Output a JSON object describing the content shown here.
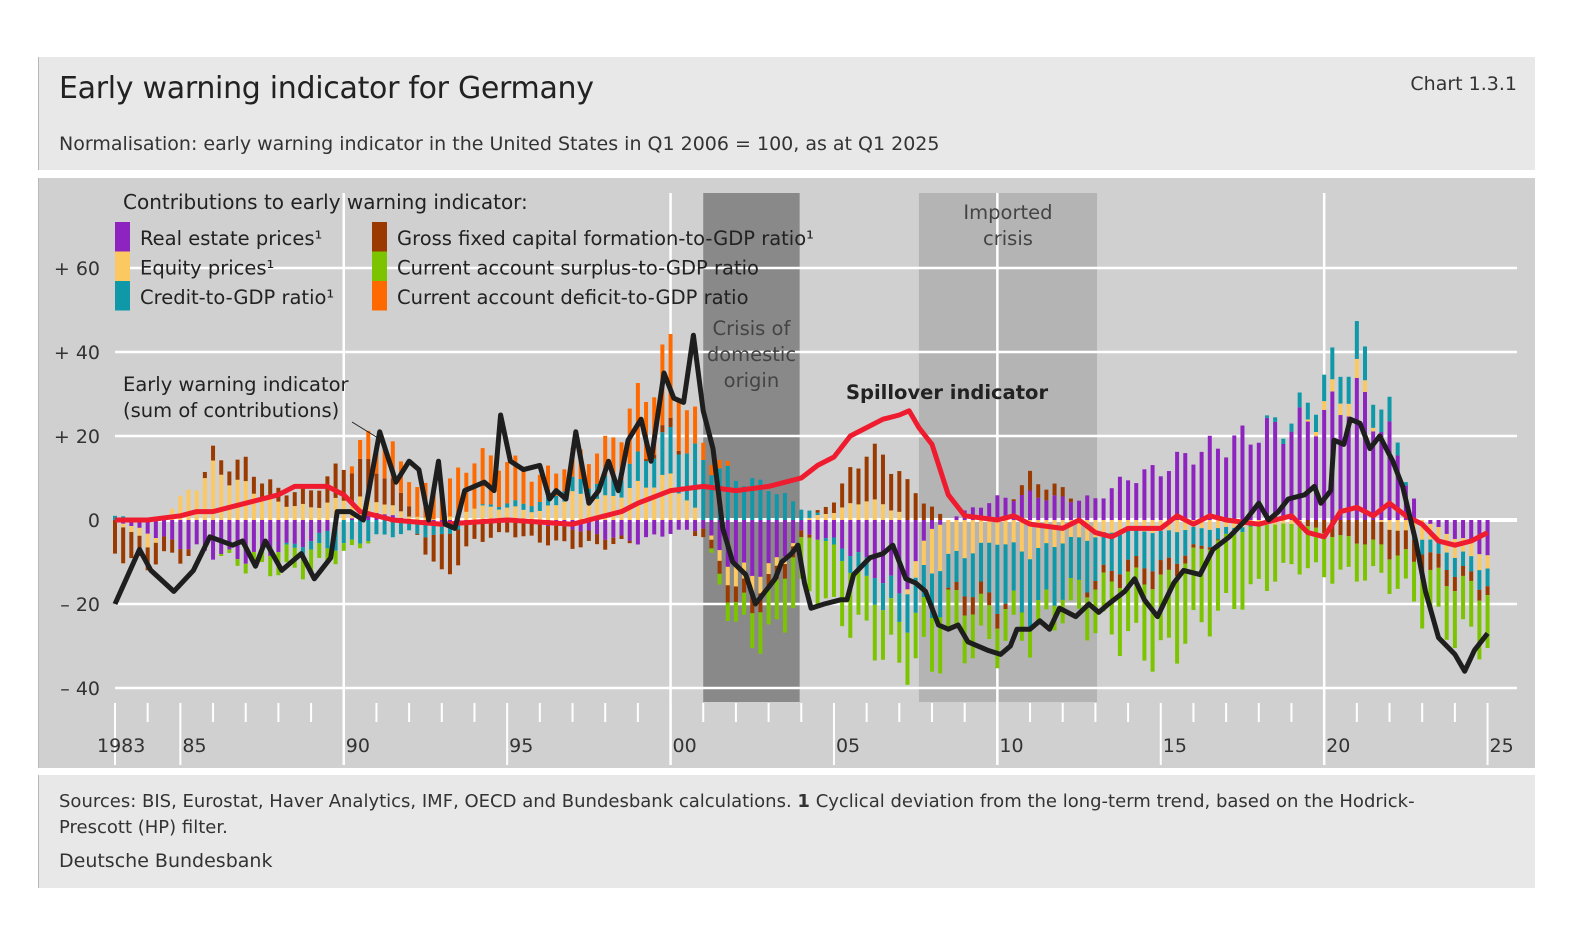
{
  "header": {
    "title": "Early warning indicator for Germany",
    "chart_number": "Chart 1.3.1",
    "subtitle": "Normalisation: early warning indicator in the United States in Q1 2006 = 100, as at Q1 2025"
  },
  "footer": {
    "sources": "Sources: BIS, Eurostat, Haver Analytics, IMF, OECD and Bundesbank calculations.",
    "footnote_marker": "1",
    "footnote": "Cyclical deviation from the long-term trend, based on the Hodrick-Prescott (HP) filter.",
    "organisation": "Deutsche Bundesbank"
  },
  "chart_data": {
    "type": "bar+line",
    "title": "Early warning indicator for Germany",
    "legend_title": "Contributions to early warning indicator:",
    "legend_position": "top-left",
    "xlim": [
      1983,
      2025.25
    ],
    "ylim": [
      -40,
      60
    ],
    "y_ticks": [
      60,
      40,
      20,
      0,
      -20,
      -40
    ],
    "y_tick_labels": [
      "+ 60",
      "+ 40",
      "+ 20",
      "0",
      "– 20",
      "– 40"
    ],
    "x_tick_years": [
      1983,
      1985,
      1990,
      1995,
      2000,
      2005,
      2010,
      2015,
      2020,
      2025
    ],
    "x_tick_labels": [
      "1983",
      "85",
      "90",
      "95",
      "00",
      "05",
      "10",
      "15",
      "20",
      "25"
    ],
    "grid": true,
    "frequency": "quarterly",
    "shaded_periods": [
      {
        "label_lines": [
          "Crisis of",
          "domestic",
          "origin"
        ],
        "start": 2001.0,
        "end": 2003.95,
        "color": "#898989"
      },
      {
        "label_lines": [
          "Imported",
          "crisis"
        ],
        "start": 2007.6,
        "end": 2013.05,
        "color": "#b4b4b4"
      }
    ],
    "annotations": {
      "ewi_label": [
        "Early warning indicator",
        "(sum of contributions)"
      ],
      "spillover_label": "Spillover indicator"
    },
    "bar_series": [
      {
        "key": "re",
        "name": "Real estate prices¹",
        "color": "#8e24c0"
      },
      {
        "key": "eq",
        "name": "Equity prices¹",
        "color": "#fcc862"
      },
      {
        "key": "cr",
        "name": "Credit-to-GDP ratio¹",
        "color": "#0e98a8"
      },
      {
        "key": "gf",
        "name": "Gross fixed capital formation-to-GDP ratio¹",
        "color": "#9a3a00"
      },
      {
        "key": "cas",
        "name": "Current account surplus-to-GDP ratio",
        "color": "#7dc400"
      },
      {
        "key": "cad",
        "name": "Current account deficit-to-GDP ratio",
        "color": "#ff6a00"
      }
    ],
    "bar_annual_values": {
      "years": [
        1983,
        1984,
        1985,
        1986,
        1987,
        1988,
        1989,
        1990,
        1991,
        1992,
        1993,
        1994,
        1995,
        1996,
        1997,
        1998,
        1999,
        2000,
        2001,
        2002,
        2003,
        2004,
        2005,
        2006,
        2007,
        2008,
        2009,
        2010,
        2011,
        2012,
        2013,
        2014,
        2015,
        2016,
        2017,
        2018,
        2019,
        2020,
        2021,
        2022,
        2023,
        2024,
        2025
      ],
      "re": [
        0,
        -3,
        -6,
        -8,
        -9,
        -7,
        -5,
        0,
        2,
        0,
        -1,
        0,
        0,
        -1,
        -2,
        -4,
        -5,
        -3,
        -2,
        -12,
        -12,
        -3,
        -5,
        -10,
        -18,
        -2,
        2,
        5,
        6,
        5,
        5,
        10,
        12,
        16,
        18,
        21,
        22,
        25,
        30,
        20,
        0,
        -4,
        -8
      ],
      "eq": [
        0,
        -3,
        5,
        12,
        8,
        4,
        3,
        5,
        3,
        1,
        0,
        3,
        3,
        2,
        6,
        5,
        8,
        10,
        0,
        -5,
        -3,
        0,
        2,
        5,
        2,
        -10,
        -8,
        -5,
        -8,
        -5,
        -4,
        -2,
        -3,
        -2,
        -2,
        -1,
        -1,
        2,
        4,
        -2,
        -4,
        -4,
        -3
      ],
      "cr": [
        1,
        0,
        0,
        0,
        0,
        0,
        -2,
        -6,
        -4,
        -3,
        -3,
        0,
        1,
        2,
        3,
        4,
        6,
        10,
        14,
        10,
        8,
        3,
        -2,
        -5,
        -7,
        -10,
        -8,
        -14,
        -14,
        -12,
        -10,
        -8,
        -8,
        -5,
        -2,
        0,
        2,
        6,
        8,
        5,
        -3,
        -4,
        -4
      ],
      "gf": [
        -8,
        -5,
        -3,
        3,
        5,
        3,
        4,
        8,
        8,
        3,
        -10,
        -5,
        -3,
        -4,
        -4,
        -2,
        0,
        2,
        -2,
        -4,
        -4,
        -2,
        3,
        12,
        10,
        3,
        -4,
        -3,
        4,
        2,
        -2,
        -3,
        -4,
        -1,
        0,
        0,
        0,
        -3,
        -5,
        -6,
        -5,
        -3,
        -2
      ],
      "cas": [
        0,
        0,
        0,
        0,
        -2,
        -5,
        -5,
        -2,
        0,
        0,
        0,
        0,
        0,
        0,
        0,
        0,
        0,
        0,
        0,
        -5,
        -10,
        -12,
        -15,
        -12,
        -10,
        -12,
        -10,
        -8,
        -6,
        -5,
        -10,
        -15,
        -18,
        -18,
        -17,
        -15,
        -10,
        -10,
        -8,
        -7,
        -10,
        -12,
        -12
      ],
      "cad": [
        0,
        0,
        0,
        0,
        0,
        0,
        0,
        0,
        8,
        7,
        7,
        12,
        10,
        6,
        6,
        8,
        14,
        18,
        4,
        0,
        0,
        0,
        0,
        0,
        0,
        0,
        0,
        0,
        0,
        0,
        0,
        0,
        0,
        0,
        0,
        0,
        0,
        0,
        0,
        0,
        0,
        0,
        0
      ]
    },
    "line_series": [
      {
        "name": "Early warning indicator (sum of contributions)",
        "color": "#1e1e1e",
        "points": [
          [
            1983.0,
            -20
          ],
          [
            1983.75,
            -7
          ],
          [
            1984.1,
            -12
          ],
          [
            1984.8,
            -17
          ],
          [
            1985.4,
            -12
          ],
          [
            1985.9,
            -4
          ],
          [
            1986.6,
            -6
          ],
          [
            1986.9,
            -5
          ],
          [
            1987.3,
            -11
          ],
          [
            1987.6,
            -5
          ],
          [
            1988.1,
            -12
          ],
          [
            1988.7,
            -8
          ],
          [
            1989.1,
            -14
          ],
          [
            1989.6,
            -9
          ],
          [
            1989.8,
            2
          ],
          [
            1990.2,
            2
          ],
          [
            1990.6,
            0
          ],
          [
            1991.1,
            21
          ],
          [
            1991.6,
            9
          ],
          [
            1992.0,
            14
          ],
          [
            1992.3,
            12
          ],
          [
            1992.6,
            0
          ],
          [
            1992.9,
            14
          ],
          [
            1993.1,
            -1
          ],
          [
            1993.4,
            -2
          ],
          [
            1993.7,
            7
          ],
          [
            1994.3,
            9
          ],
          [
            1994.6,
            7
          ],
          [
            1994.8,
            25
          ],
          [
            1995.1,
            14
          ],
          [
            1995.5,
            12
          ],
          [
            1996.0,
            13
          ],
          [
            1996.3,
            5
          ],
          [
            1996.5,
            7
          ],
          [
            1996.8,
            5
          ],
          [
            1997.1,
            21
          ],
          [
            1997.5,
            4
          ],
          [
            1997.8,
            7
          ],
          [
            1998.1,
            14
          ],
          [
            1998.4,
            7
          ],
          [
            1998.7,
            19
          ],
          [
            1999.1,
            24
          ],
          [
            1999.4,
            14
          ],
          [
            1999.8,
            35
          ],
          [
            2000.1,
            29
          ],
          [
            2000.4,
            28
          ],
          [
            2000.7,
            44
          ],
          [
            2001.0,
            26
          ],
          [
            2001.3,
            17
          ],
          [
            2001.6,
            -2
          ],
          [
            2001.9,
            -10
          ],
          [
            2002.3,
            -13
          ],
          [
            2002.6,
            -20
          ],
          [
            2002.9,
            -17
          ],
          [
            2003.2,
            -14
          ],
          [
            2003.4,
            -10
          ],
          [
            2003.7,
            -8
          ],
          [
            2003.9,
            -6
          ],
          [
            2004.1,
            -15
          ],
          [
            2004.3,
            -21
          ],
          [
            2004.7,
            -20
          ],
          [
            2005.2,
            -19
          ],
          [
            2005.4,
            -19
          ],
          [
            2005.6,
            -13
          ],
          [
            2006.1,
            -9
          ],
          [
            2006.5,
            -8
          ],
          [
            2006.8,
            -6
          ],
          [
            2007.2,
            -14
          ],
          [
            2007.5,
            -15
          ],
          [
            2007.8,
            -17
          ],
          [
            2008.2,
            -25
          ],
          [
            2008.5,
            -26
          ],
          [
            2008.8,
            -25
          ],
          [
            2009.1,
            -29
          ],
          [
            2009.7,
            -31
          ],
          [
            2010.1,
            -32
          ],
          [
            2010.4,
            -30
          ],
          [
            2010.6,
            -26
          ],
          [
            2011.0,
            -26
          ],
          [
            2011.3,
            -24
          ],
          [
            2011.6,
            -26
          ],
          [
            2011.9,
            -21
          ],
          [
            2012.4,
            -23
          ],
          [
            2012.8,
            -20
          ],
          [
            2013.1,
            -22
          ],
          [
            2013.4,
            -20
          ],
          [
            2013.9,
            -17
          ],
          [
            2014.2,
            -14
          ],
          [
            2014.5,
            -19
          ],
          [
            2014.9,
            -23
          ],
          [
            2015.4,
            -15
          ],
          [
            2015.7,
            -12
          ],
          [
            2016.2,
            -13
          ],
          [
            2016.6,
            -7
          ],
          [
            2017.1,
            -4
          ],
          [
            2017.6,
            0
          ],
          [
            2018.0,
            4
          ],
          [
            2018.3,
            0
          ],
          [
            2018.6,
            2
          ],
          [
            2018.9,
            5
          ],
          [
            2019.4,
            6
          ],
          [
            2019.7,
            8
          ],
          [
            2019.9,
            4
          ],
          [
            2020.2,
            7
          ],
          [
            2020.3,
            19
          ],
          [
            2020.6,
            18
          ],
          [
            2020.8,
            24
          ],
          [
            2021.1,
            23
          ],
          [
            2021.4,
            17
          ],
          [
            2021.7,
            20
          ],
          [
            2022.1,
            14
          ],
          [
            2022.4,
            8
          ],
          [
            2022.8,
            -5
          ],
          [
            2023.1,
            -17
          ],
          [
            2023.5,
            -28
          ],
          [
            2024.0,
            -32
          ],
          [
            2024.3,
            -36
          ],
          [
            2024.6,
            -31
          ],
          [
            2025.0,
            -27
          ]
        ]
      },
      {
        "name": "Spillover indicator",
        "color": "#ee1c2e",
        "points": [
          [
            1983,
            0
          ],
          [
            1984,
            0
          ],
          [
            1985,
            1
          ],
          [
            1985.5,
            2
          ],
          [
            1986,
            2
          ],
          [
            1987,
            4
          ],
          [
            1988,
            6
          ],
          [
            1988.5,
            8
          ],
          [
            1989.5,
            8
          ],
          [
            1990,
            6
          ],
          [
            1990.5,
            2
          ],
          [
            1991.5,
            0
          ],
          [
            1993,
            -1
          ],
          [
            1995,
            0
          ],
          [
            1997,
            -1
          ],
          [
            1998.5,
            2
          ],
          [
            1999,
            4
          ],
          [
            2000,
            7
          ],
          [
            2001,
            8
          ],
          [
            2002,
            7
          ],
          [
            2003,
            8
          ],
          [
            2004,
            10
          ],
          [
            2004.5,
            13
          ],
          [
            2005,
            15
          ],
          [
            2005.5,
            20
          ],
          [
            2006,
            22
          ],
          [
            2006.5,
            24
          ],
          [
            2007,
            25
          ],
          [
            2007.3,
            26
          ],
          [
            2007.6,
            22
          ],
          [
            2008,
            18
          ],
          [
            2008.5,
            6
          ],
          [
            2009,
            1
          ],
          [
            2010,
            0
          ],
          [
            2010.5,
            1
          ],
          [
            2011,
            -1
          ],
          [
            2012,
            -2
          ],
          [
            2012.5,
            0
          ],
          [
            2013,
            -3
          ],
          [
            2013.5,
            -4
          ],
          [
            2014,
            -2
          ],
          [
            2015,
            -2
          ],
          [
            2015.5,
            1
          ],
          [
            2016,
            -1
          ],
          [
            2016.5,
            1
          ],
          [
            2017,
            0
          ],
          [
            2018,
            -1
          ],
          [
            2018.5,
            0
          ],
          [
            2019,
            1
          ],
          [
            2019.5,
            -3
          ],
          [
            2020,
            -4
          ],
          [
            2020.5,
            2
          ],
          [
            2021,
            3
          ],
          [
            2021.5,
            1
          ],
          [
            2022,
            4
          ],
          [
            2022.5,
            1
          ],
          [
            2023,
            -1
          ],
          [
            2023.5,
            -5
          ],
          [
            2024,
            -6
          ],
          [
            2024.5,
            -5
          ],
          [
            2025,
            -3
          ]
        ]
      }
    ]
  }
}
